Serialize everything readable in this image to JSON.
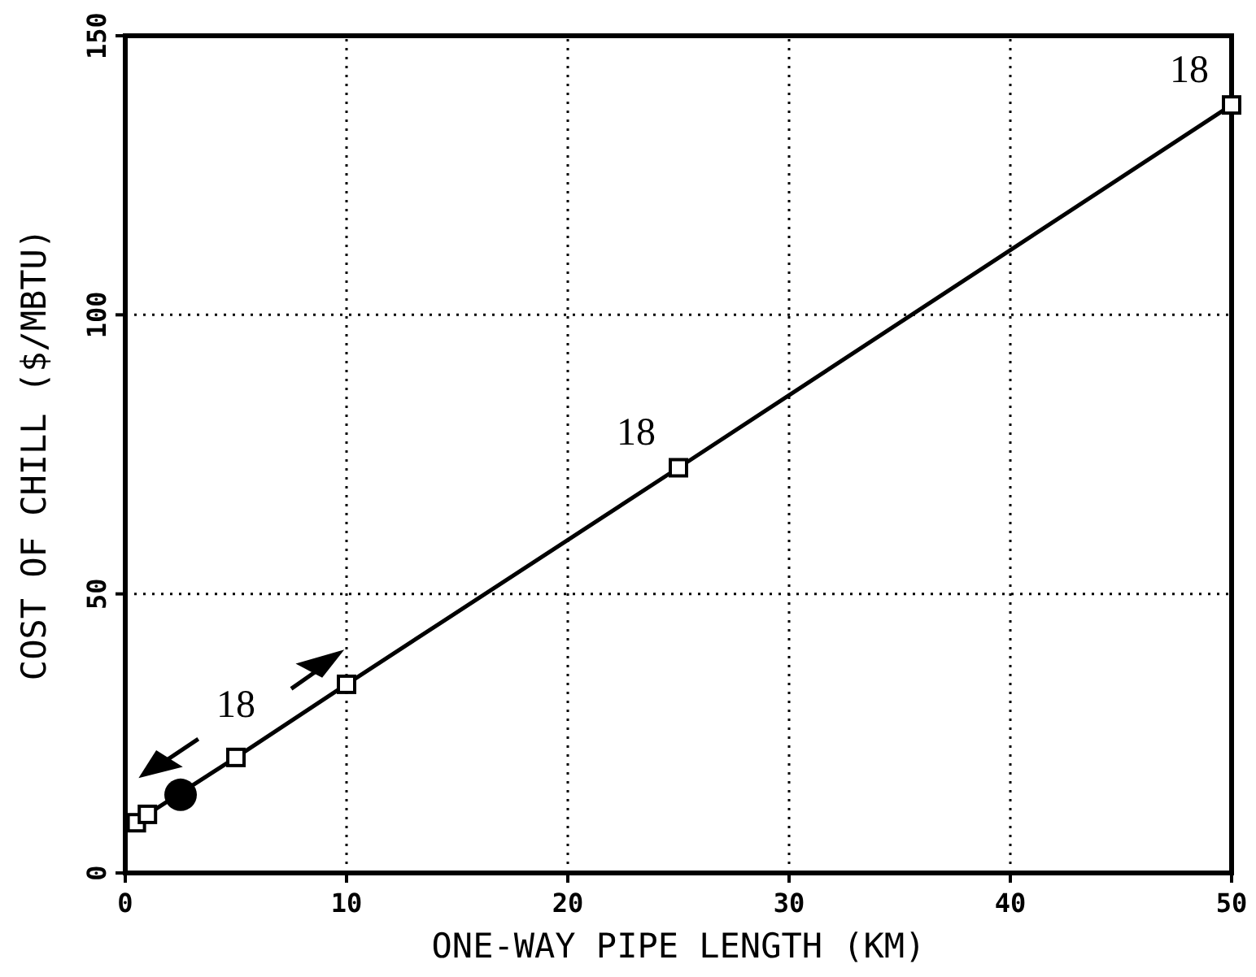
{
  "chart_data": {
    "type": "line",
    "xlabel": "ONE-WAY PIPE LENGTH (KM)",
    "ylabel": "COST OF CHILL ($/MBTU)",
    "xlim": [
      0,
      50
    ],
    "ylim": [
      0,
      150
    ],
    "xticks": [
      0,
      10,
      20,
      30,
      40,
      50
    ],
    "yticks": [
      0,
      50,
      100,
      150
    ],
    "grid": true,
    "series": [
      {
        "color": "#000000",
        "marker": "square",
        "x": [
          0.5,
          1,
          5,
          10,
          25,
          50
        ],
        "values": [
          9,
          10.5,
          20.7,
          33.8,
          72.6,
          137.6
        ]
      },
      {
        "type": "scatter",
        "color": "#000000",
        "marker": "circle",
        "x": [
          2.5
        ],
        "values": [
          14
        ]
      }
    ],
    "annotations": [
      {
        "text": "18",
        "x": 25,
        "y": 72.6
      },
      {
        "text": "18",
        "x": 50,
        "y": 137.6
      },
      "18"
    ]
  }
}
